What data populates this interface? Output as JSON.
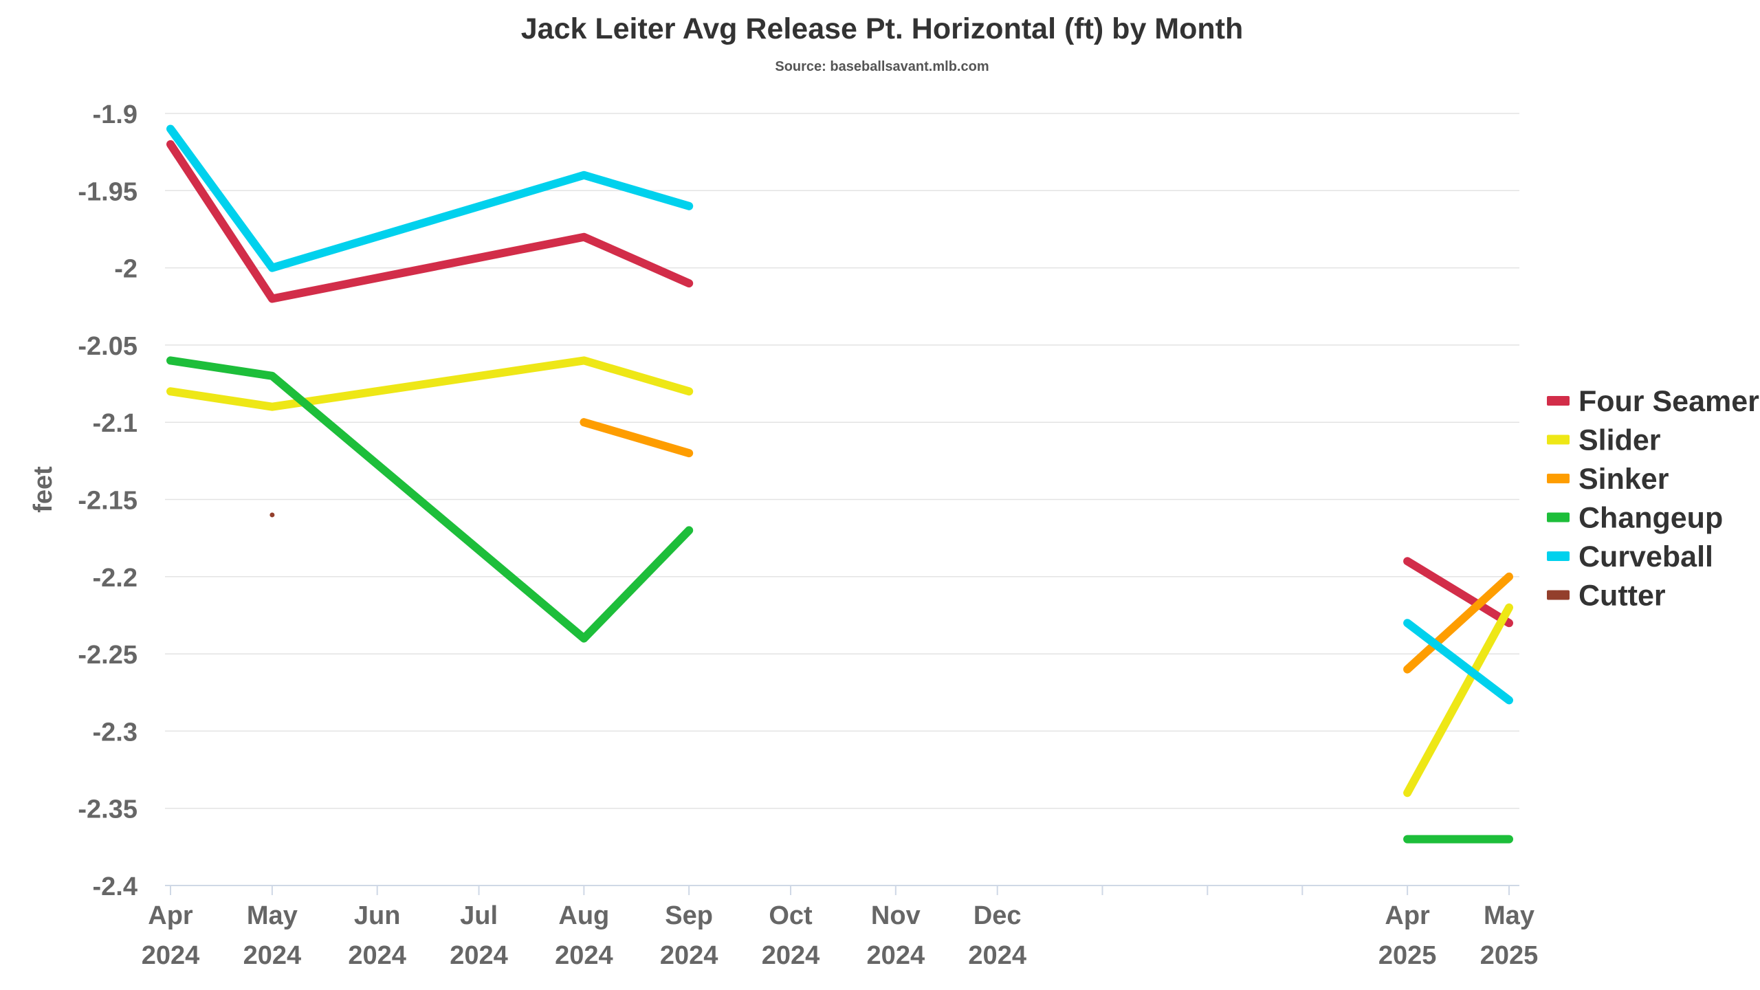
{
  "chart_data": {
    "type": "line",
    "title": "Jack Leiter Avg Release Pt. Horizontal (ft) by Month",
    "subtitle": "Source: baseballsavant.mlb.com",
    "xlabel": "",
    "ylabel": "feet",
    "ylim": [
      -2.4,
      -1.9
    ],
    "yticks": [
      "-1.9",
      "-1.95",
      "-2",
      "-2.05",
      "-2.1",
      "-2.15",
      "-2.2",
      "-2.25",
      "-2.3",
      "-2.35",
      "-2.4"
    ],
    "xticks": [
      {
        "month": "Apr",
        "year": "2024",
        "x": "2024-04-01"
      },
      {
        "month": "May",
        "year": "2024",
        "x": "2024-05-01"
      },
      {
        "month": "Jun",
        "year": "2024",
        "x": "2024-06-01"
      },
      {
        "month": "Jul",
        "year": "2024",
        "x": "2024-07-01"
      },
      {
        "month": "Aug",
        "year": "2024",
        "x": "2024-08-01"
      },
      {
        "month": "Sep",
        "year": "2024",
        "x": "2024-09-01"
      },
      {
        "month": "Oct",
        "year": "2024",
        "x": "2024-10-01"
      },
      {
        "month": "Nov",
        "year": "2024",
        "x": "2024-11-01"
      },
      {
        "month": "Dec",
        "year": "2024",
        "x": "2024-12-01"
      },
      {
        "month": "",
        "year": "",
        "x": "2025-01-01"
      },
      {
        "month": "",
        "year": "",
        "x": "2025-02-01"
      },
      {
        "month": "",
        "year": "",
        "x": "2025-03-01"
      },
      {
        "month": "Apr",
        "year": "2025",
        "x": "2025-04-01"
      },
      {
        "month": "May",
        "year": "2025",
        "x": "2025-05-01"
      }
    ],
    "grid": true,
    "legend_position": "right",
    "series": [
      {
        "name": "Four Seamer",
        "color": "#d22d49",
        "segments": [
          [
            [
              "2024-04-01",
              -1.92
            ],
            [
              "2024-05-01",
              -2.02
            ],
            [
              "2024-08-01",
              -1.98
            ],
            [
              "2024-09-01",
              -2.01
            ]
          ],
          [
            [
              "2025-04-01",
              -2.19
            ],
            [
              "2025-05-01",
              -2.23
            ]
          ]
        ]
      },
      {
        "name": "Slider",
        "color": "#eee716",
        "segments": [
          [
            [
              "2024-04-01",
              -2.08
            ],
            [
              "2024-05-01",
              -2.09
            ],
            [
              "2024-08-01",
              -2.06
            ],
            [
              "2024-09-01",
              -2.08
            ]
          ],
          [
            [
              "2025-04-01",
              -2.34
            ],
            [
              "2025-05-01",
              -2.22
            ]
          ]
        ]
      },
      {
        "name": "Sinker",
        "color": "#fe9d00",
        "segments": [
          [
            [
              "2024-08-01",
              -2.1
            ],
            [
              "2024-09-01",
              -2.12
            ]
          ],
          [
            [
              "2025-04-01",
              -2.26
            ],
            [
              "2025-05-01",
              -2.2
            ]
          ]
        ]
      },
      {
        "name": "Changeup",
        "color": "#1dbe3a",
        "segments": [
          [
            [
              "2024-04-01",
              -2.06
            ],
            [
              "2024-05-01",
              -2.07
            ],
            [
              "2024-08-01",
              -2.24
            ],
            [
              "2024-09-01",
              -2.17
            ]
          ],
          [
            [
              "2025-04-01",
              -2.37
            ],
            [
              "2025-05-01",
              -2.37
            ]
          ]
        ]
      },
      {
        "name": "Curveball",
        "color": "#00d1ed",
        "segments": [
          [
            [
              "2024-04-01",
              -1.91
            ],
            [
              "2024-05-01",
              -2.0
            ],
            [
              "2024-08-01",
              -1.94
            ],
            [
              "2024-09-01",
              -1.96
            ]
          ],
          [
            [
              "2025-04-01",
              -2.23
            ],
            [
              "2025-05-01",
              -2.28
            ]
          ]
        ]
      },
      {
        "name": "Cutter",
        "color": "#933f2c",
        "segments": [
          [
            [
              "2024-05-01",
              -2.16
            ]
          ]
        ]
      }
    ]
  }
}
